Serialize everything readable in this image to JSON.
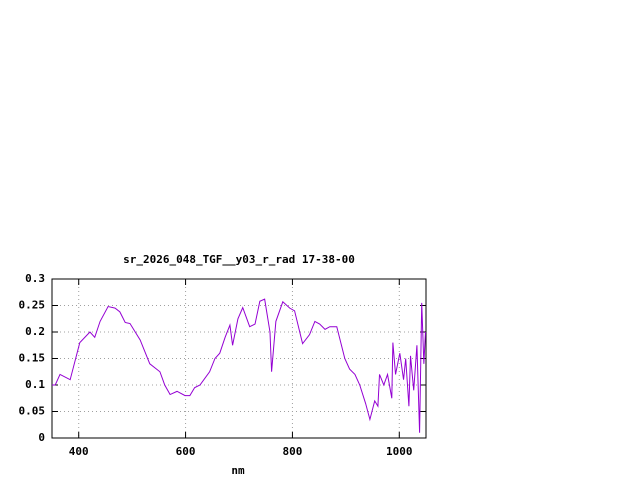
{
  "chart_data": {
    "type": "line",
    "title": "sr_2026_048_TGF__y03_r_rad 17-38-00",
    "x_label": "nm",
    "x": [
      350,
      356,
      365,
      384,
      402,
      421,
      430,
      440,
      455,
      468,
      477,
      487,
      496,
      515,
      533,
      552,
      561,
      571,
      584,
      599,
      608,
      617,
      627,
      645,
      655,
      664,
      674,
      683,
      688,
      698,
      707,
      720,
      730,
      739,
      748,
      758,
      761,
      769,
      782,
      795,
      804,
      819,
      832,
      842,
      851,
      861,
      870,
      883,
      898,
      907,
      917,
      926,
      937,
      945,
      954,
      960,
      963,
      971,
      978,
      986,
      988,
      993,
      1001,
      1008,
      1012,
      1018,
      1021,
      1027,
      1033,
      1038,
      1042,
      1046,
      1049
    ],
    "series": [
      {
        "name": "sr_2026_048_TGF__y03_r_rad",
        "color": "#9400d3",
        "values": [
          0.1,
          0.1,
          0.12,
          0.11,
          0.18,
          0.2,
          0.19,
          0.22,
          0.248,
          0.245,
          0.238,
          0.218,
          0.216,
          0.185,
          0.14,
          0.125,
          0.1,
          0.082,
          0.088,
          0.08,
          0.08,
          0.095,
          0.1,
          0.125,
          0.15,
          0.16,
          0.19,
          0.213,
          0.175,
          0.225,
          0.246,
          0.21,
          0.215,
          0.258,
          0.262,
          0.2,
          0.125,
          0.22,
          0.257,
          0.245,
          0.24,
          0.178,
          0.195,
          0.22,
          0.215,
          0.205,
          0.21,
          0.21,
          0.15,
          0.13,
          0.12,
          0.1,
          0.065,
          0.035,
          0.07,
          0.06,
          0.12,
          0.1,
          0.12,
          0.075,
          0.18,
          0.12,
          0.16,
          0.11,
          0.15,
          0.06,
          0.155,
          0.09,
          0.175,
          0.01,
          0.255,
          0.14,
          0.2
        ]
      }
    ],
    "xlim": [
      350,
      1050
    ],
    "ylim": [
      0,
      0.3
    ],
    "xticks": [
      400,
      600,
      800,
      1000
    ],
    "yticks": [
      0,
      0.05,
      0.1,
      0.15,
      0.2,
      0.25,
      0.3
    ],
    "grid": true
  }
}
